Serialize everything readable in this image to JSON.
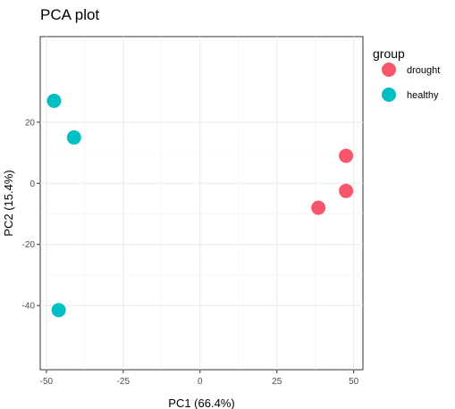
{
  "chart_data": {
    "type": "scatter",
    "title": "PCA plot",
    "xlabel": "PC1 (66.4%)",
    "ylabel": "PC2 (15.4%)",
    "xlim": [
      -52,
      53
    ],
    "ylim": [
      -61,
      48
    ],
    "x_ticks": [
      -50,
      -25,
      0,
      25,
      50
    ],
    "y_ticks": [
      -40,
      -20,
      0,
      20
    ],
    "x_tick_labels": [
      "-50",
      "-25",
      "0",
      "25",
      "50"
    ],
    "y_tick_labels": [
      "-40",
      "-20",
      "0",
      "20"
    ],
    "grid": true,
    "legend": {
      "title": "group",
      "placement": "right"
    },
    "series": [
      {
        "name": "drought",
        "color": "#F8566D",
        "points": [
          {
            "x": 47.5,
            "y": 9
          },
          {
            "x": 47.5,
            "y": -2.5
          },
          {
            "x": 38.5,
            "y": -8
          }
        ]
      },
      {
        "name": "healthy",
        "color": "#00BFC4",
        "points": [
          {
            "x": -47.5,
            "y": 27
          },
          {
            "x": -41,
            "y": 15
          },
          {
            "x": -46,
            "y": -41.5
          }
        ]
      }
    ]
  }
}
